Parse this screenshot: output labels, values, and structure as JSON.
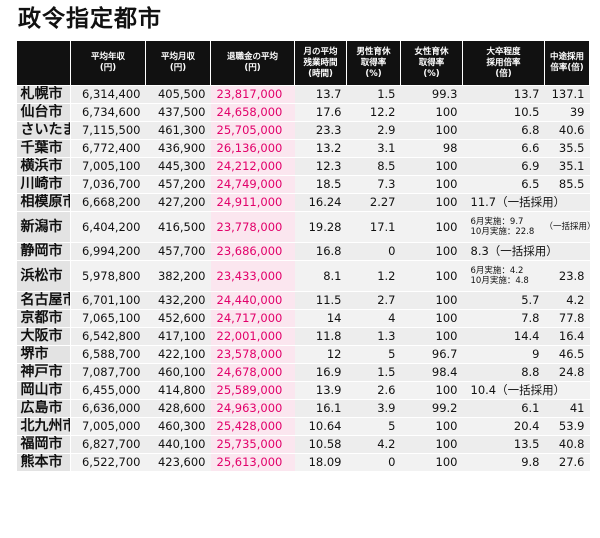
{
  "title": "政令指定都市",
  "headers": {
    "salary": "平均年収\n(円)",
    "monthly": "平均月収\n(円)",
    "retirement": "退職金の平均\n(円)",
    "overtime": "月の平均\n残業時間\n(時間)",
    "male_leave": "男性育休\n取得率\n(%)",
    "female_leave": "女性育休\n取得率\n(%)",
    "grad_rate": "大卒程度\n採用倍率\n(倍)",
    "mid_rate": "中途採用\n倍率(倍)"
  },
  "rows": [
    {
      "city": "札幌市",
      "salary": "6,314,400",
      "monthly": "405,500",
      "retirement": "23,817,000",
      "overtime": "13.7",
      "male_leave": "1.5",
      "female_leave": "99.3",
      "grad_rate": "13.7",
      "mid_rate": "137.1"
    },
    {
      "city": "仙台市",
      "salary": "6,734,600",
      "monthly": "437,500",
      "retirement": "24,658,000",
      "overtime": "17.6",
      "male_leave": "12.2",
      "female_leave": "100",
      "grad_rate": "10.5",
      "mid_rate": "39"
    },
    {
      "city": "さいたま市",
      "salary": "7,115,500",
      "monthly": "461,300",
      "retirement": "25,705,000",
      "overtime": "23.3",
      "male_leave": "2.9",
      "female_leave": "100",
      "grad_rate": "6.8",
      "mid_rate": "40.6"
    },
    {
      "city": "千葉市",
      "salary": "6,772,400",
      "monthly": "436,900",
      "retirement": "26,136,000",
      "overtime": "13.2",
      "male_leave": "3.1",
      "female_leave": "98",
      "grad_rate": "6.6",
      "mid_rate": "35.5"
    },
    {
      "city": "横浜市",
      "salary": "7,005,100",
      "monthly": "445,300",
      "retirement": "24,212,000",
      "overtime": "12.3",
      "male_leave": "8.5",
      "female_leave": "100",
      "grad_rate": "6.9",
      "mid_rate": "35.1"
    },
    {
      "city": "川崎市",
      "salary": "7,036,700",
      "monthly": "457,200",
      "retirement": "24,749,000",
      "overtime": "18.5",
      "male_leave": "7.3",
      "female_leave": "100",
      "grad_rate": "6.5",
      "mid_rate": "85.5"
    },
    {
      "city": "相模原市",
      "salary": "6,668,200",
      "monthly": "427,200",
      "retirement": "24,911,000",
      "overtime": "16.24",
      "male_leave": "2.27",
      "female_leave": "100",
      "combined": "11.7（一括採用）"
    },
    {
      "city": "新潟市",
      "salary": "6,404,200",
      "monthly": "416,500",
      "retirement": "23,778,000",
      "overtime": "19.28",
      "male_leave": "17.1",
      "female_leave": "100",
      "grad_rate_a": "6月実施：9.7",
      "grad_rate_b": "10月実施：22.8",
      "mid_rate": "（一括採用）"
    },
    {
      "city": "静岡市",
      "salary": "6,994,200",
      "monthly": "457,700",
      "retirement": "23,686,000",
      "overtime": "16.8",
      "male_leave": "0",
      "female_leave": "100",
      "combined": "8.3（一括採用）"
    },
    {
      "city": "浜松市",
      "salary": "5,978,800",
      "monthly": "382,200",
      "retirement": "23,433,000",
      "overtime": "8.1",
      "male_leave": "1.2",
      "female_leave": "100",
      "grad_rate_a": "6月実施：4.2",
      "grad_rate_b": "10月実施：4.8",
      "mid_rate": "23.8"
    },
    {
      "city": "名古屋市",
      "salary": "6,701,100",
      "monthly": "432,200",
      "retirement": "24,440,000",
      "overtime": "11.5",
      "male_leave": "2.7",
      "female_leave": "100",
      "grad_rate": "5.7",
      "mid_rate": "4.2"
    },
    {
      "city": "京都市",
      "salary": "7,065,100",
      "monthly": "452,600",
      "retirement": "24,717,000",
      "overtime": "14",
      "male_leave": "4",
      "female_leave": "100",
      "grad_rate": "7.8",
      "mid_rate": "77.8"
    },
    {
      "city": "大阪市",
      "salary": "6,542,800",
      "monthly": "417,100",
      "retirement": "22,001,000",
      "overtime": "11.8",
      "male_leave": "1.3",
      "female_leave": "100",
      "grad_rate": "14.4",
      "mid_rate": "16.4"
    },
    {
      "city": "堺市",
      "salary": "6,588,700",
      "monthly": "422,100",
      "retirement": "23,578,000",
      "overtime": "12",
      "male_leave": "5",
      "female_leave": "96.7",
      "grad_rate": "9",
      "mid_rate": "46.5"
    },
    {
      "city": "神戸市",
      "salary": "7,087,700",
      "monthly": "460,100",
      "retirement": "24,678,000",
      "overtime": "16.9",
      "male_leave": "1.5",
      "female_leave": "98.4",
      "grad_rate": "8.8",
      "mid_rate": "24.8"
    },
    {
      "city": "岡山市",
      "salary": "6,455,000",
      "monthly": "414,800",
      "retirement": "25,589,000",
      "overtime": "13.9",
      "male_leave": "2.6",
      "female_leave": "100",
      "combined": "10.4（一括採用）"
    },
    {
      "city": "広島市",
      "salary": "6,636,000",
      "monthly": "428,600",
      "retirement": "24,963,000",
      "overtime": "16.1",
      "male_leave": "3.9",
      "female_leave": "99.2",
      "grad_rate": "6.1",
      "mid_rate": "41"
    },
    {
      "city": "北九州市",
      "salary": "7,005,000",
      "monthly": "460,300",
      "retirement": "25,428,000",
      "overtime": "10.64",
      "male_leave": "5",
      "female_leave": "100",
      "grad_rate": "20.4",
      "mid_rate": "53.9"
    },
    {
      "city": "福岡市",
      "salary": "6,827,700",
      "monthly": "440,100",
      "retirement": "25,735,000",
      "overtime": "10.58",
      "male_leave": "4.2",
      "female_leave": "100",
      "grad_rate": "13.5",
      "mid_rate": "40.8"
    },
    {
      "city": "熊本市",
      "salary": "6,522,700",
      "monthly": "423,600",
      "retirement": "25,613,000",
      "overtime": "18.09",
      "male_leave": "0",
      "female_leave": "100",
      "grad_rate": "9.8",
      "mid_rate": "27.6"
    }
  ]
}
